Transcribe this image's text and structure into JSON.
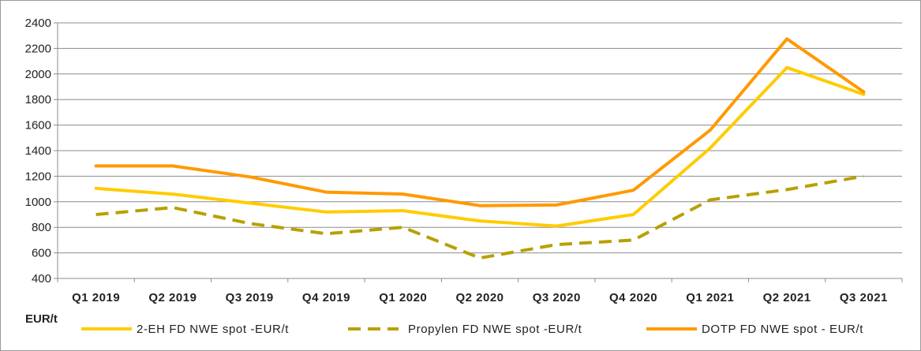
{
  "chart_data": {
    "type": "line",
    "title": "",
    "xlabel": "",
    "ylabel": "",
    "unit_label": "EUR/t",
    "categories": [
      "Q1 2019",
      "Q2 2019",
      "Q3 2019",
      "Q4 2019",
      "Q1 2020",
      "Q2 2020",
      "Q3 2020",
      "Q4 2020",
      "Q1 2021",
      "Q2 2021",
      "Q3 2021"
    ],
    "ylim": [
      400,
      2400
    ],
    "yticks": [
      "400",
      "600",
      "800",
      "1000",
      "1200",
      "1400",
      "1600",
      "1800",
      "2000",
      "2200",
      "2400"
    ],
    "grid": true,
    "legend_position": "bottom",
    "series": [
      {
        "name": "2-EH FD NWE spot  -EUR/t",
        "color": "#FFCC00",
        "style": "solid",
        "values": [
          1105,
          1060,
          990,
          920,
          930,
          850,
          810,
          900,
          1420,
          2050,
          1840
        ]
      },
      {
        "name": "Propylen FD NWE spot -EUR/t",
        "color": "#B8A000",
        "style": "dashed",
        "values": [
          900,
          955,
          830,
          750,
          800,
          560,
          665,
          700,
          1015,
          1095,
          1200
        ]
      },
      {
        "name": "DOTP FD NWE spot - EUR/t",
        "color": "#FF9900",
        "style": "solid",
        "values": [
          1280,
          1280,
          1195,
          1075,
          1060,
          970,
          975,
          1090,
          1560,
          2275,
          1860
        ]
      }
    ]
  }
}
